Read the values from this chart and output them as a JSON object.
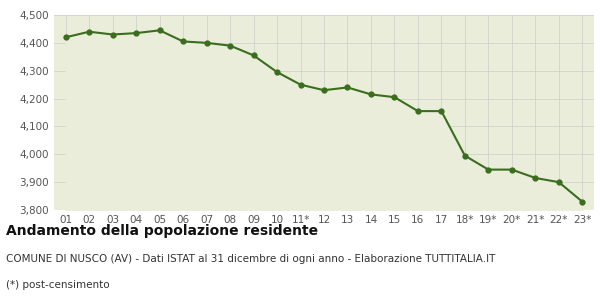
{
  "x_labels": [
    "01",
    "02",
    "03",
    "04",
    "05",
    "06",
    "07",
    "08",
    "09",
    "10",
    "11*",
    "12",
    "13",
    "14",
    "15",
    "16",
    "17",
    "18*",
    "19*",
    "20*",
    "21*",
    "22*",
    "23*"
  ],
  "values": [
    4420,
    4440,
    4430,
    4435,
    4445,
    4405,
    4400,
    4390,
    4355,
    4295,
    4250,
    4230,
    4240,
    4215,
    4205,
    4155,
    4155,
    3995,
    3945,
    3945,
    3915,
    3900,
    3830
  ],
  "line_color": "#3a6e1e",
  "fill_color": "#eaedda",
  "marker": "o",
  "marker_size": 3.5,
  "line_width": 1.5,
  "ylim": [
    3800,
    4500
  ],
  "yticks": [
    3800,
    3900,
    4000,
    4100,
    4200,
    4300,
    4400,
    4500
  ],
  "bg_color": "#ffffff",
  "grid_color": "#cccccc",
  "title": "Andamento della popolazione residente",
  "subtitle": "COMUNE DI NUSCO (AV) - Dati ISTAT al 31 dicembre di ogni anno - Elaborazione TUTTITALIA.IT",
  "footnote": "(*) post-censimento",
  "title_fontsize": 10,
  "subtitle_fontsize": 7.5,
  "footnote_fontsize": 7.5,
  "tick_fontsize": 7.5
}
